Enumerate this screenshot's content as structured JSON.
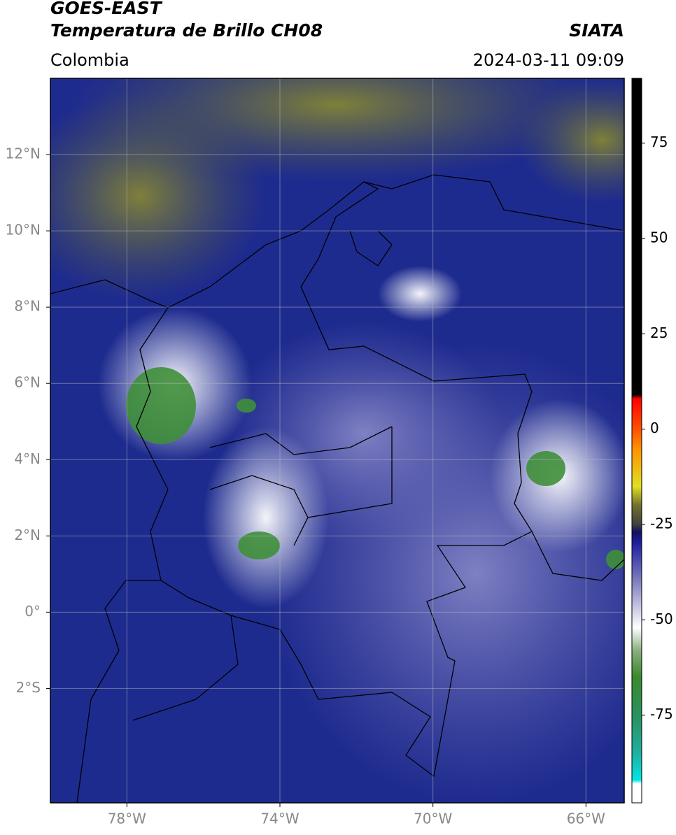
{
  "header": {
    "title": "GOES-EAST",
    "subtitle": "Temperatura de Brillo CH08",
    "source": "SIATA",
    "region": "Colombia",
    "datetime": "2024-03-11 09:09"
  },
  "map": {
    "lonlim": [
      -80,
      -65
    ],
    "latlim": [
      -5,
      14
    ],
    "lonticks": [
      {
        "value": -78,
        "label": "78°W"
      },
      {
        "value": -74,
        "label": "74°W"
      },
      {
        "value": -70,
        "label": "70°W"
      },
      {
        "value": -66,
        "label": "66°W"
      }
    ],
    "latticks": [
      {
        "value": 12,
        "label": "12°N"
      },
      {
        "value": 10,
        "label": "10°N"
      },
      {
        "value": 8,
        "label": "8°N"
      },
      {
        "value": 6,
        "label": "6°N"
      },
      {
        "value": 4,
        "label": "4°N"
      },
      {
        "value": 2,
        "label": "2°N"
      },
      {
        "value": 0,
        "label": "0°"
      },
      {
        "value": -2,
        "label": "2°S"
      }
    ],
    "grid": true
  },
  "colorbar": {
    "lim": [
      -98,
      92
    ],
    "ticks": [
      -75,
      -50,
      -25,
      0,
      25,
      50,
      75
    ],
    "stops": [
      {
        "value": -98,
        "color": "#ffffff"
      },
      {
        "value": -93,
        "color": "#ffffff"
      },
      {
        "value": -92,
        "color": "#00e5e5"
      },
      {
        "value": -85,
        "color": "#20b0a0"
      },
      {
        "value": -75,
        "color": "#2a9060"
      },
      {
        "value": -65,
        "color": "#3a8a2a"
      },
      {
        "value": -58,
        "color": "#8ab080"
      },
      {
        "value": -52,
        "color": "#ffffff"
      },
      {
        "value": -40,
        "color": "#8080c0"
      },
      {
        "value": -30,
        "color": "#2020a0"
      },
      {
        "value": -27,
        "color": "#101060"
      },
      {
        "value": -25,
        "color": "#404040"
      },
      {
        "value": -20,
        "color": "#707030"
      },
      {
        "value": -15,
        "color": "#e0e020"
      },
      {
        "value": -5,
        "color": "#ff9000"
      },
      {
        "value": 0,
        "color": "#ff5000"
      },
      {
        "value": 8,
        "color": "#ff0000"
      },
      {
        "value": 9,
        "color": "#000000"
      },
      {
        "value": 92,
        "color": "#000000"
      }
    ]
  }
}
